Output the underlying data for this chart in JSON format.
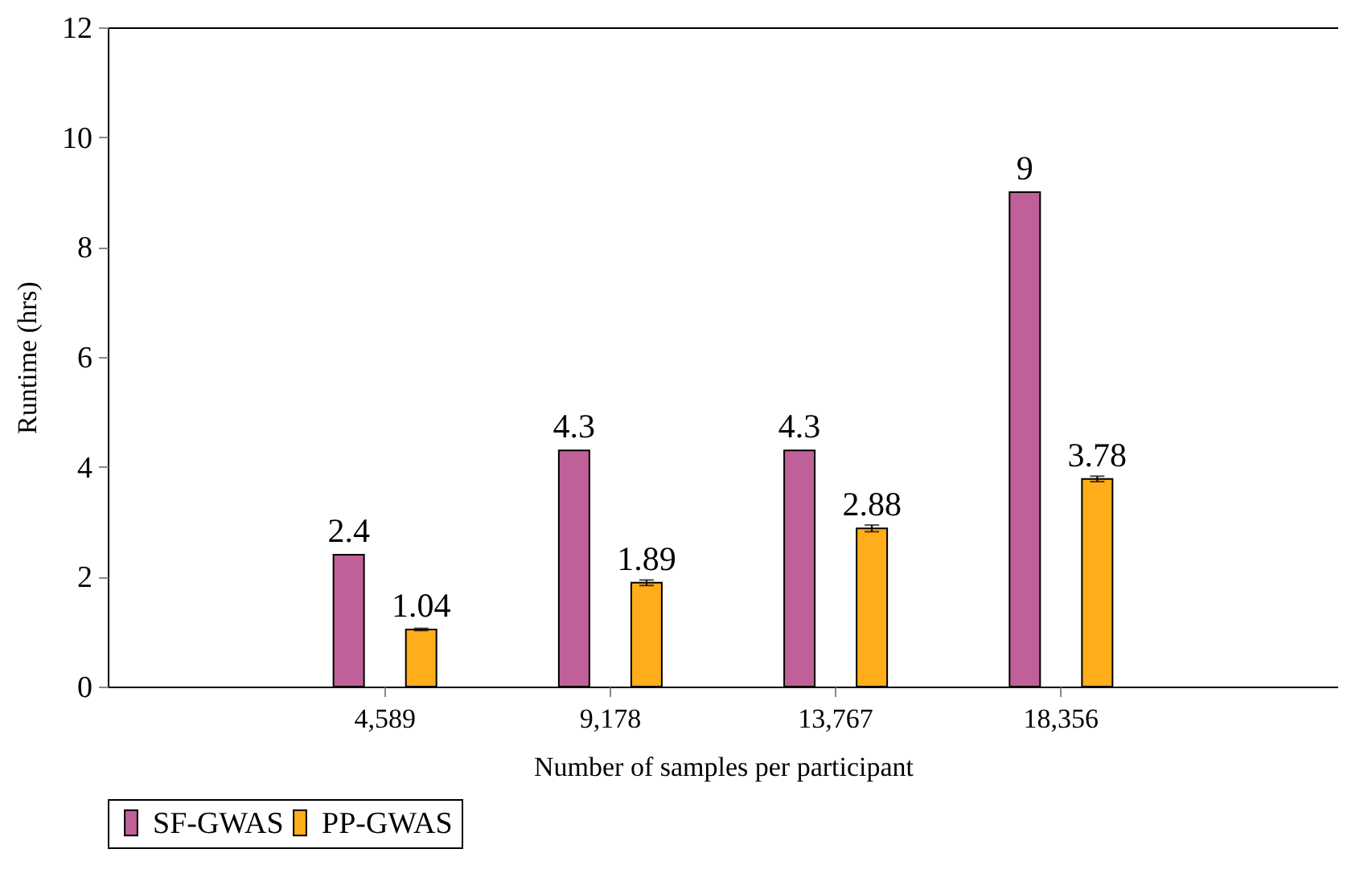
{
  "chart_data": {
    "type": "bar",
    "xlabel": "Number of samples per participant",
    "ylabel": "Runtime (hrs)",
    "categories": [
      "4,589",
      "9,178",
      "13,767",
      "18,356"
    ],
    "series": [
      {
        "name": "SF-GWAS",
        "color": "#c06098",
        "values": [
          2.4,
          4.3,
          4.3,
          9
        ]
      },
      {
        "name": "PP-GWAS",
        "color": "#ffad1a",
        "values": [
          1.04,
          1.89,
          2.88,
          3.78
        ],
        "errors": [
          0.02,
          0.05,
          0.06,
          0.05
        ]
      }
    ],
    "ylim": [
      0,
      12
    ],
    "yticks": [
      0,
      2,
      4,
      6,
      8,
      10,
      12
    ],
    "data_labels": true,
    "legend": "bottom"
  }
}
